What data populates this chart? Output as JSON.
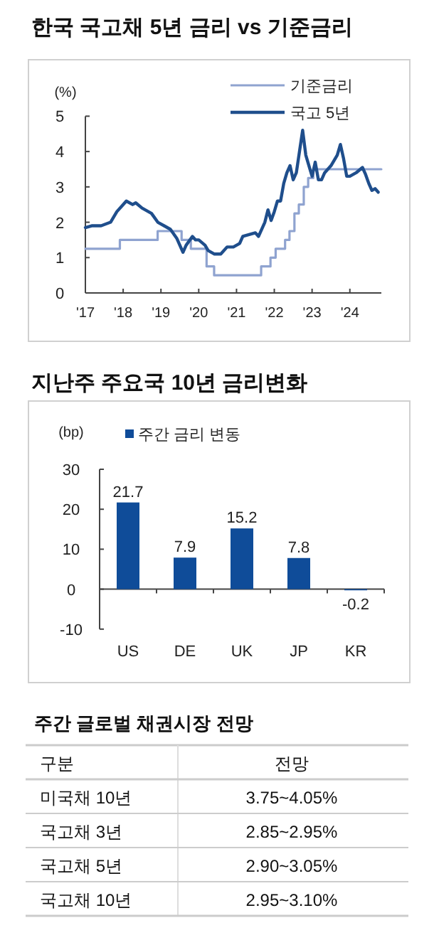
{
  "chart_data": [
    {
      "type": "line",
      "title": "한국 국고채 5년 금리 vs 기준금리",
      "ylabel": "(%)",
      "xlim": [
        "2017-01",
        "2024-11"
      ],
      "ylim": [
        0,
        5
      ],
      "yticks": [
        0,
        1,
        2,
        3,
        4,
        5
      ],
      "xticks": [
        {
          "value": "2017-01",
          "label": "'17"
        },
        {
          "value": "2018-01",
          "label": "'18"
        },
        {
          "value": "2019-01",
          "label": "'19"
        },
        {
          "value": "2020-01",
          "label": "'20"
        },
        {
          "value": "2021-01",
          "label": "'21"
        },
        {
          "value": "2022-01",
          "label": "'22"
        },
        {
          "value": "2023-01",
          "label": "'23"
        },
        {
          "value": "2024-01",
          "label": "'24"
        }
      ],
      "legend": "top right",
      "series": [
        {
          "name": "기준금리",
          "type": "step",
          "color": "#8fa3d0",
          "x": [
            "2017-01",
            "2017-11-30",
            "2018-11-30",
            "2019-07-18",
            "2019-10-16",
            "2020-03-16",
            "2020-05-28",
            "2021-08-26",
            "2021-11-25",
            "2022-01-14",
            "2022-04-14",
            "2022-05-26",
            "2022-07-13",
            "2022-08-25",
            "2022-10-12",
            "2022-11-24",
            "2023-01-13",
            "2024-10-31"
          ],
          "values": [
            1.25,
            1.5,
            1.75,
            1.5,
            1.25,
            0.75,
            0.5,
            0.75,
            1.0,
            1.25,
            1.5,
            1.75,
            2.25,
            2.5,
            3.0,
            3.25,
            3.5,
            3.5
          ]
        },
        {
          "name": "국고 5년",
          "type": "line",
          "color": "#1f4e8c",
          "x": [
            "2017-01",
            "2017-03",
            "2017-06",
            "2017-09",
            "2017-11",
            "2018-01",
            "2018-02",
            "2018-04",
            "2018-05",
            "2018-07",
            "2018-09",
            "2018-10",
            "2018-12",
            "2019-02",
            "2019-04",
            "2019-06",
            "2019-08",
            "2019-09",
            "2019-11",
            "2019-12",
            "2020-01",
            "2020-03",
            "2020-04",
            "2020-06",
            "2020-08",
            "2020-10",
            "2020-12",
            "2021-02",
            "2021-03",
            "2021-05",
            "2021-07",
            "2021-08",
            "2021-10",
            "2021-11",
            "2021-12",
            "2022-01",
            "2022-02",
            "2022-03",
            "2022-04",
            "2022-05",
            "2022-06",
            "2022-07",
            "2022-08",
            "2022-09",
            "2022-10",
            "2022-11",
            "2022-12",
            "2023-01",
            "2023-02",
            "2023-03",
            "2023-04",
            "2023-05",
            "2023-07",
            "2023-09",
            "2023-10",
            "2023-11",
            "2023-12",
            "2024-01",
            "2024-03",
            "2024-05",
            "2024-06",
            "2024-07",
            "2024-08",
            "2024-09",
            "2024-10"
          ],
          "values": [
            1.85,
            1.9,
            1.9,
            2.0,
            2.3,
            2.5,
            2.6,
            2.5,
            2.55,
            2.4,
            2.3,
            2.25,
            2.0,
            1.9,
            1.8,
            1.55,
            1.15,
            1.35,
            1.6,
            1.5,
            1.5,
            1.35,
            1.2,
            1.1,
            1.1,
            1.3,
            1.3,
            1.4,
            1.6,
            1.65,
            1.7,
            1.6,
            2.0,
            2.35,
            2.05,
            2.3,
            2.6,
            2.6,
            3.1,
            3.4,
            3.6,
            3.2,
            3.4,
            4.0,
            4.6,
            3.9,
            3.6,
            3.3,
            3.7,
            3.2,
            3.2,
            3.4,
            3.6,
            3.9,
            4.2,
            3.8,
            3.3,
            3.3,
            3.4,
            3.55,
            3.35,
            3.1,
            2.9,
            2.95,
            2.85
          ]
        }
      ]
    },
    {
      "type": "bar",
      "title": "지난주 주요국 10년 금리변화",
      "ylabel": "(bp)",
      "categories": [
        "US",
        "DE",
        "UK",
        "JP",
        "KR"
      ],
      "ylim": [
        -10,
        30
      ],
      "yticks": [
        -10,
        0,
        10,
        20,
        30
      ],
      "legend": "top left",
      "data_labels": true,
      "series": [
        {
          "name": "주간 금리 변동",
          "color": "#0f4c99",
          "values": [
            21.7,
            7.9,
            15.2,
            7.8,
            -0.2
          ]
        }
      ]
    },
    {
      "type": "other",
      "title": "주간 글로벌 채권시장 전망",
      "annotations": [
        "구분",
        "전망",
        "미국채 10년",
        "3.75~4.05%",
        "국고채 3년",
        "2.85~2.95%",
        "국고채 5년",
        "2.90~3.05%",
        "국고채 10년",
        "2.95~3.10%"
      ]
    }
  ]
}
